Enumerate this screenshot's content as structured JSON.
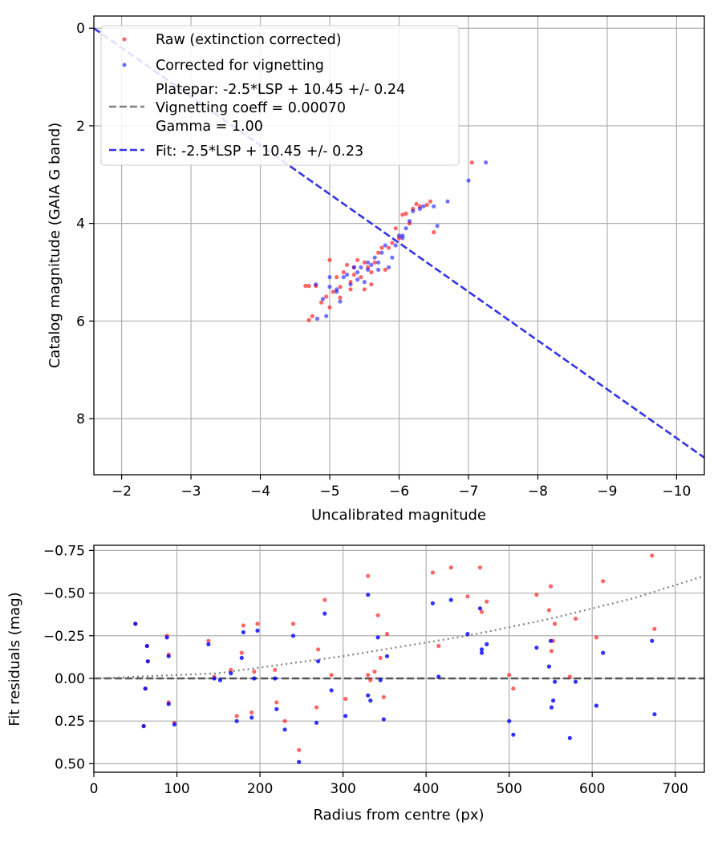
{
  "chart_data": [
    {
      "type": "scatter",
      "xlabel": "Uncalibrated magnitude",
      "ylabel": "Catalog magnitude (GAIA G band)",
      "xlim": [
        -1.6,
        -10.4
      ],
      "ylim": [
        -0.25,
        9.15
      ],
      "xticks": [
        -2,
        -3,
        -4,
        -5,
        -6,
        -7,
        -8,
        -9,
        -10
      ],
      "xtick_labels": [
        "−2",
        "−3",
        "−4",
        "−5",
        "−6",
        "−7",
        "−8",
        "−9",
        "−10"
      ],
      "yticks": [
        0,
        2,
        4,
        6,
        8
      ],
      "ytick_labels": [
        "0",
        "2",
        "4",
        "6",
        "8"
      ],
      "grid": true,
      "legend_position": "top-left",
      "legend": [
        {
          "label": "Raw (extinction corrected)",
          "marker": "dot",
          "color": "#ff0000"
        },
        {
          "label": "Corrected for vignetting",
          "marker": "dot",
          "color": "#0000ff"
        },
        {
          "lines": [
            "Platepar: -2.5*LSP + 10.45 +/- 0.24",
            "Vignetting coeff = 0.00070",
            "Gamma = 1.00"
          ],
          "marker": "dash",
          "color": "#808080"
        },
        {
          "label": "Fit: -2.5*LSP + 10.45 +/- 0.23",
          "marker": "dash",
          "color": "#3333ee"
        }
      ],
      "series": [
        {
          "name": "Raw (extinction corrected)",
          "color": "#ff0000",
          "points": [
            [
              -4.65,
              5.28
            ],
            [
              -4.7,
              5.28
            ],
            [
              -4.8,
              5.28
            ],
            [
              -4.75,
              5.9
            ],
            [
              -4.7,
              5.98
            ],
            [
              -4.88,
              5.62
            ],
            [
              -4.95,
              5.5
            ],
            [
              -5.0,
              4.75
            ],
            [
              -5.05,
              5.4
            ],
            [
              -5.1,
              5.1
            ],
            [
              -5.15,
              5.3
            ],
            [
              -5.2,
              5.0
            ],
            [
              -5.25,
              4.85
            ],
            [
              -5.3,
              5.2
            ],
            [
              -5.35,
              4.9
            ],
            [
              -5.4,
              4.75
            ],
            [
              -5.45,
              5.1
            ],
            [
              -5.5,
              4.8
            ],
            [
              -5.55,
              4.9
            ],
            [
              -5.6,
              5.0
            ],
            [
              -5.65,
              4.8
            ],
            [
              -5.7,
              4.6
            ],
            [
              -5.75,
              4.5
            ],
            [
              -5.8,
              4.95
            ],
            [
              -5.85,
              4.5
            ],
            [
              -5.9,
              4.4
            ],
            [
              -5.95,
              4.1
            ],
            [
              -6.0,
              4.3
            ],
            [
              -6.05,
              3.82
            ],
            [
              -6.1,
              3.8
            ],
            [
              -6.15,
              4.0
            ],
            [
              -6.2,
              3.7
            ],
            [
              -6.25,
              3.6
            ],
            [
              -6.3,
              3.65
            ],
            [
              -6.4,
              3.62
            ],
            [
              -6.45,
              3.55
            ],
            [
              -6.5,
              4.18
            ],
            [
              -7.05,
              2.75
            ],
            [
              -5.3,
              5.35
            ],
            [
              -5.5,
              5.35
            ],
            [
              -5.6,
              5.25
            ],
            [
              -5.0,
              5.72
            ],
            [
              -5.15,
              5.52
            ],
            [
              -5.35,
              5.05
            ]
          ]
        },
        {
          "name": "Corrected for vignetting",
          "color": "#0000ff",
          "points": [
            [
              -4.8,
              5.25
            ],
            [
              -4.82,
              5.95
            ],
            [
              -4.9,
              5.55
            ],
            [
              -5.0,
              5.3
            ],
            [
              -5.1,
              5.4
            ],
            [
              -5.15,
              5.6
            ],
            [
              -5.2,
              5.1
            ],
            [
              -5.25,
              5.05
            ],
            [
              -5.3,
              5.25
            ],
            [
              -5.35,
              4.9
            ],
            [
              -5.4,
              5.15
            ],
            [
              -5.45,
              4.9
            ],
            [
              -5.5,
              5.2
            ],
            [
              -5.55,
              4.95
            ],
            [
              -5.6,
              4.85
            ],
            [
              -5.65,
              4.7
            ],
            [
              -5.7,
              4.8
            ],
            [
              -5.75,
              4.6
            ],
            [
              -5.8,
              4.45
            ],
            [
              -5.85,
              4.9
            ],
            [
              -5.9,
              4.7
            ],
            [
              -5.95,
              4.45
            ],
            [
              -6.0,
              4.25
            ],
            [
              -6.05,
              4.25
            ],
            [
              -6.1,
              4.1
            ],
            [
              -6.15,
              3.95
            ],
            [
              -6.2,
              3.75
            ],
            [
              -6.3,
              3.7
            ],
            [
              -6.35,
              3.65
            ],
            [
              -6.5,
              3.65
            ],
            [
              -6.55,
              4.05
            ],
            [
              -6.7,
              3.55
            ],
            [
              -7.0,
              3.12
            ],
            [
              -7.25,
              2.75
            ],
            [
              -5.1,
              5.35
            ],
            [
              -5.4,
              5.0
            ],
            [
              -5.7,
              4.95
            ],
            [
              -5.0,
              5.1
            ],
            [
              -4.95,
              5.9
            ],
            [
              -5.55,
              4.8
            ],
            [
              -6.05,
              4.3
            ]
          ]
        }
      ],
      "lines": [
        {
          "name": "Platepar",
          "slope": -1,
          "intercept": -1.6,
          "color": "#808080",
          "style": "dashed"
        },
        {
          "name": "Fit",
          "slope": -1,
          "intercept": -1.6,
          "color": "#3333ee",
          "style": "dashed"
        }
      ]
    },
    {
      "type": "scatter",
      "xlabel": "Radius from centre (px)",
      "ylabel": "Fit residuals (mag)",
      "xlim": [
        0,
        735
      ],
      "ylim": [
        -0.78,
        0.55
      ],
      "xticks": [
        0,
        100,
        200,
        300,
        400,
        500,
        600,
        700
      ],
      "xtick_labels": [
        "0",
        "100",
        "200",
        "300",
        "400",
        "500",
        "600",
        "700"
      ],
      "yticks": [
        0.5,
        0.25,
        0.0,
        -0.25,
        -0.5,
        -0.75
      ],
      "ytick_labels": [
        "0.50",
        "0.25",
        "0.00",
        "−0.25",
        "−0.50",
        "−0.75"
      ],
      "grid": true,
      "series": [
        {
          "name": "Raw (extinction corrected)",
          "color": "#ff0000",
          "points": [
            [
              50,
              -0.32
            ],
            [
              60,
              0.28
            ],
            [
              62,
              0.06
            ],
            [
              65,
              -0.1
            ],
            [
              64,
              -0.19
            ],
            [
              88,
              -0.25
            ],
            [
              90,
              0.14
            ],
            [
              90,
              -0.14
            ],
            [
              97,
              0.26
            ],
            [
              138,
              -0.22
            ],
            [
              145,
              -0.01
            ],
            [
              165,
              -0.05
            ],
            [
              172,
              0.22
            ],
            [
              178,
              -0.15
            ],
            [
              180,
              -0.31
            ],
            [
              190,
              0.2
            ],
            [
              193,
              -0.04
            ],
            [
              197,
              -0.32
            ],
            [
              218,
              -0.05
            ],
            [
              220,
              0.14
            ],
            [
              230,
              0.25
            ],
            [
              240,
              -0.32
            ],
            [
              247,
              0.42
            ],
            [
              268,
              0.17
            ],
            [
              270,
              -0.17
            ],
            [
              278,
              -0.46
            ],
            [
              286,
              -0.02
            ],
            [
              303,
              0.12
            ],
            [
              330,
              -0.6
            ],
            [
              330,
              -0.02
            ],
            [
              333,
              0.01
            ],
            [
              338,
              -0.04
            ],
            [
              342,
              -0.37
            ],
            [
              345,
              -0.12
            ],
            [
              349,
              0.11
            ],
            [
              353,
              -0.26
            ],
            [
              408,
              -0.62
            ],
            [
              415,
              -0.19
            ],
            [
              430,
              -0.65
            ],
            [
              450,
              -0.48
            ],
            [
              465,
              -0.65
            ],
            [
              467,
              -0.39
            ],
            [
              473,
              -0.45
            ],
            [
              500,
              -0.02
            ],
            [
              505,
              0.06
            ],
            [
              533,
              -0.49
            ],
            [
              548,
              -0.4
            ],
            [
              550,
              -0.54
            ],
            [
              551,
              -0.16
            ],
            [
              553,
              -0.22
            ],
            [
              555,
              -0.32
            ],
            [
              573,
              -0.01
            ],
            [
              580,
              -0.35
            ],
            [
              605,
              -0.24
            ],
            [
              613,
              -0.57
            ],
            [
              672,
              -0.72
            ],
            [
              675,
              -0.29
            ]
          ]
        },
        {
          "name": "Corrected for vignetting",
          "color": "#0000ff",
          "points": [
            [
              50,
              -0.32
            ],
            [
              60,
              0.28
            ],
            [
              62,
              0.06
            ],
            [
              65,
              -0.1
            ],
            [
              64,
              -0.19
            ],
            [
              88,
              -0.24
            ],
            [
              90,
              0.15
            ],
            [
              90,
              -0.13
            ],
            [
              97,
              0.27
            ],
            [
              138,
              -0.2
            ],
            [
              145,
              0.0
            ],
            [
              152,
              0.01
            ],
            [
              165,
              -0.03
            ],
            [
              172,
              0.25
            ],
            [
              178,
              -0.12
            ],
            [
              180,
              -0.27
            ],
            [
              190,
              0.23
            ],
            [
              193,
              0.0
            ],
            [
              197,
              -0.28
            ],
            [
              218,
              0.0
            ],
            [
              220,
              0.18
            ],
            [
              230,
              0.3
            ],
            [
              240,
              -0.25
            ],
            [
              247,
              0.49
            ],
            [
              268,
              0.26
            ],
            [
              270,
              -0.1
            ],
            [
              278,
              -0.38
            ],
            [
              286,
              0.07
            ],
            [
              303,
              0.22
            ],
            [
              330,
              -0.49
            ],
            [
              330,
              0.1
            ],
            [
              333,
              0.13
            ],
            [
              342,
              -0.24
            ],
            [
              345,
              0.01
            ],
            [
              349,
              0.24
            ],
            [
              353,
              -0.13
            ],
            [
              408,
              -0.44
            ],
            [
              415,
              -0.01
            ],
            [
              430,
              -0.46
            ],
            [
              450,
              -0.26
            ],
            [
              465,
              -0.41
            ],
            [
              467,
              -0.15
            ],
            [
              467,
              -0.17
            ],
            [
              473,
              -0.2
            ],
            [
              500,
              0.25
            ],
            [
              505,
              0.33
            ],
            [
              533,
              -0.18
            ],
            [
              548,
              -0.07
            ],
            [
              550,
              -0.22
            ],
            [
              551,
              0.17
            ],
            [
              553,
              0.13
            ],
            [
              555,
              0.02
            ],
            [
              573,
              0.35
            ],
            [
              580,
              0.02
            ],
            [
              605,
              0.16
            ],
            [
              613,
              -0.15
            ],
            [
              672,
              -0.22
            ],
            [
              675,
              0.21
            ]
          ]
        }
      ],
      "lines": [
        {
          "name": "zero",
          "y": 0.0,
          "color": "#555555",
          "style": "dashed"
        },
        {
          "name": "vignetting curve",
          "color": "#808080",
          "style": "dotted",
          "points": [
            [
              0,
              0.0
            ],
            [
              150,
              -0.03
            ],
            [
              300,
              -0.13
            ],
            [
              450,
              -0.25
            ],
            [
              550,
              -0.35
            ],
            [
              650,
              -0.47
            ],
            [
              735,
              -0.6
            ]
          ]
        }
      ]
    }
  ]
}
